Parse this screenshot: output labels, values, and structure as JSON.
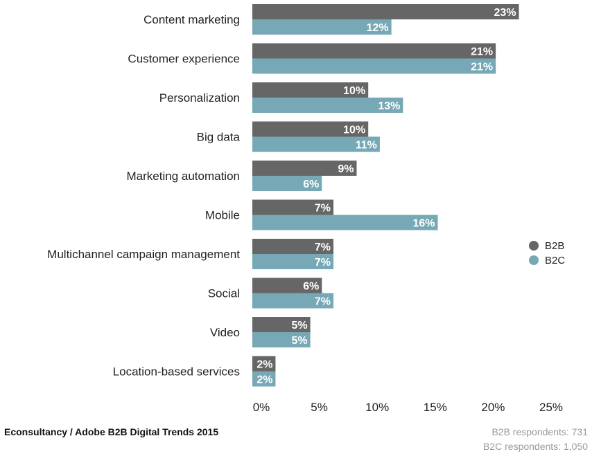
{
  "chart_data": {
    "type": "bar",
    "orientation": "horizontal",
    "categories": [
      "Content marketing",
      "Customer experience",
      "Personalization",
      "Big data",
      "Marketing automation",
      "Mobile",
      "Multichannel campaign management",
      "Social",
      "Video",
      "Location-based services"
    ],
    "series": [
      {
        "name": "B2B",
        "color": "#666666",
        "values": [
          23,
          21,
          10,
          10,
          9,
          7,
          7,
          6,
          5,
          2
        ]
      },
      {
        "name": "B2C",
        "color": "#77a8b5",
        "values": [
          12,
          21,
          13,
          11,
          6,
          16,
          7,
          7,
          5,
          2
        ]
      }
    ],
    "value_suffix": "%",
    "xlim": [
      0,
      25
    ],
    "xticks": [
      0,
      5,
      10,
      15,
      20,
      25
    ],
    "xtick_labels": [
      "0%",
      "5%",
      "10%",
      "15%",
      "20%",
      "25%"
    ],
    "grid": false,
    "legend_position": "right"
  },
  "footer": {
    "source": "Econsultancy / Adobe B2B Digital Trends 2015",
    "b2b_respondents": "B2B respondents: 731",
    "b2c_respondents": "B2C respondents: 1,050"
  }
}
